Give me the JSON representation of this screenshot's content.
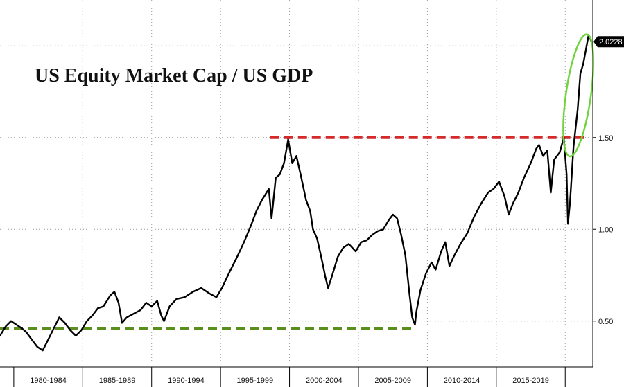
{
  "chart_data": {
    "type": "line",
    "title": "US Equity Market Cap / US GDP",
    "xlabel": "",
    "ylabel": "",
    "x_range": [
      1979.0,
      2022.0
    ],
    "ylim": [
      0.25,
      2.25
    ],
    "y_ticks": [
      0.5,
      1.0,
      1.5
    ],
    "y_tick_labels": [
      "0.50",
      "1.00",
      "1.50"
    ],
    "x_tick_labels": [
      "1980-1984",
      "1985-1989",
      "1990-1994",
      "1995-1999",
      "2000-2004",
      "2005-2009",
      "2010-2014",
      "2015-2019"
    ],
    "y_axis_side": "right",
    "grid": true,
    "series": [
      {
        "color": "#000000",
        "x": [
          1979.0,
          1979.4,
          1979.8,
          1980.2,
          1980.6,
          1980.9,
          1981.3,
          1981.7,
          1982.1,
          1982.5,
          1982.9,
          1983.3,
          1983.7,
          1984.1,
          1984.5,
          1984.9,
          1985.3,
          1985.7,
          1986.1,
          1986.5,
          1987.0,
          1987.3,
          1987.6,
          1987.85,
          1988.2,
          1988.7,
          1989.2,
          1989.6,
          1990.0,
          1990.4,
          1990.7,
          1990.9,
          1991.3,
          1991.8,
          1992.4,
          1993.0,
          1993.6,
          1994.2,
          1994.7,
          1995.1,
          1995.6,
          1996.2,
          1996.7,
          1997.2,
          1997.6,
          1998.0,
          1998.5,
          1998.7,
          1999.0,
          1999.3,
          1999.6,
          1999.9,
          2000.2,
          2000.5,
          2000.8,
          2001.2,
          2001.5,
          2001.7,
          2002.0,
          2002.3,
          2002.6,
          2002.8,
          2003.1,
          2003.5,
          2003.9,
          2004.3,
          2004.8,
          2005.2,
          2005.6,
          2006.0,
          2006.4,
          2006.8,
          2007.2,
          2007.5,
          2007.8,
          2008.1,
          2008.4,
          2008.7,
          2008.9,
          2009.1,
          2009.2,
          2009.5,
          2009.9,
          2010.3,
          2010.6,
          2011.0,
          2011.3,
          2011.6,
          2011.9,
          2012.4,
          2012.9,
          2013.4,
          2013.9,
          2014.4,
          2014.8,
          2015.2,
          2015.6,
          2015.9,
          2016.2,
          2016.6,
          2017.0,
          2017.5,
          2017.9,
          2018.1,
          2018.4,
          2018.7,
          2018.95,
          2019.2,
          2019.6,
          2019.9,
          2020.1,
          2020.2,
          2020.35,
          2020.6,
          2020.9,
          2021.1,
          2021.3,
          2021.5,
          2021.7,
          2021.9
        ],
        "y": [
          0.42,
          0.47,
          0.5,
          0.48,
          0.46,
          0.44,
          0.4,
          0.36,
          0.34,
          0.4,
          0.46,
          0.52,
          0.49,
          0.45,
          0.42,
          0.45,
          0.5,
          0.53,
          0.57,
          0.58,
          0.64,
          0.66,
          0.6,
          0.49,
          0.52,
          0.54,
          0.56,
          0.6,
          0.58,
          0.61,
          0.53,
          0.5,
          0.58,
          0.62,
          0.63,
          0.66,
          0.68,
          0.65,
          0.63,
          0.68,
          0.76,
          0.85,
          0.93,
          1.02,
          1.1,
          1.16,
          1.22,
          1.06,
          1.28,
          1.3,
          1.36,
          1.49,
          1.36,
          1.4,
          1.3,
          1.16,
          1.1,
          1.0,
          0.95,
          0.85,
          0.74,
          0.68,
          0.75,
          0.85,
          0.9,
          0.92,
          0.88,
          0.93,
          0.94,
          0.97,
          0.99,
          1.0,
          1.05,
          1.08,
          1.06,
          0.97,
          0.86,
          0.65,
          0.52,
          0.48,
          0.55,
          0.67,
          0.76,
          0.82,
          0.78,
          0.88,
          0.93,
          0.8,
          0.85,
          0.92,
          0.98,
          1.07,
          1.14,
          1.2,
          1.22,
          1.26,
          1.18,
          1.08,
          1.14,
          1.2,
          1.28,
          1.36,
          1.44,
          1.46,
          1.4,
          1.43,
          1.2,
          1.38,
          1.42,
          1.5,
          1.3,
          1.03,
          1.15,
          1.45,
          1.65,
          1.85,
          1.9,
          1.98,
          2.06,
          2.0228
        ]
      }
    ],
    "last_value_label": "2.0228",
    "reference_lines": [
      {
        "y": 1.5,
        "x_start": 1998.6,
        "x_end": 2021.6,
        "color": "#d42a2a",
        "style": "dashed"
      },
      {
        "y": 0.46,
        "x_start": 1979.0,
        "x_end": 2009.0,
        "color": "#5a8f1e",
        "style": "dashed"
      }
    ],
    "highlight_ellipse": {
      "color": "#6fd43c",
      "x_center": 2020.95,
      "y_center": 1.73
    }
  }
}
